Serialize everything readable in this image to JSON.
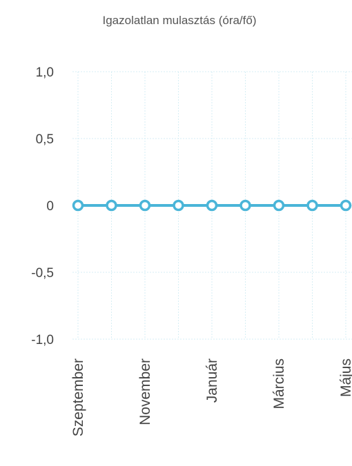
{
  "chart_data": {
    "type": "line",
    "title": "Igazolatlan mulasztás (óra/fő)",
    "xlabel": "",
    "ylabel": "",
    "x_tick_labels": [
      "Szeptember",
      "November",
      "Január",
      "Március",
      "Május"
    ],
    "y_tick_labels": [
      "1,0",
      "0,5",
      "0",
      "-0,5",
      "-1,0"
    ],
    "y_ticks": [
      1.0,
      0.5,
      0,
      -0.5,
      -1.0
    ],
    "ylim": [
      -1.0,
      1.0
    ],
    "grid": true,
    "series": [
      {
        "color": "#4ab5d8",
        "values": [
          0,
          0,
          0,
          0,
          0,
          0,
          0,
          0,
          0
        ]
      }
    ]
  }
}
